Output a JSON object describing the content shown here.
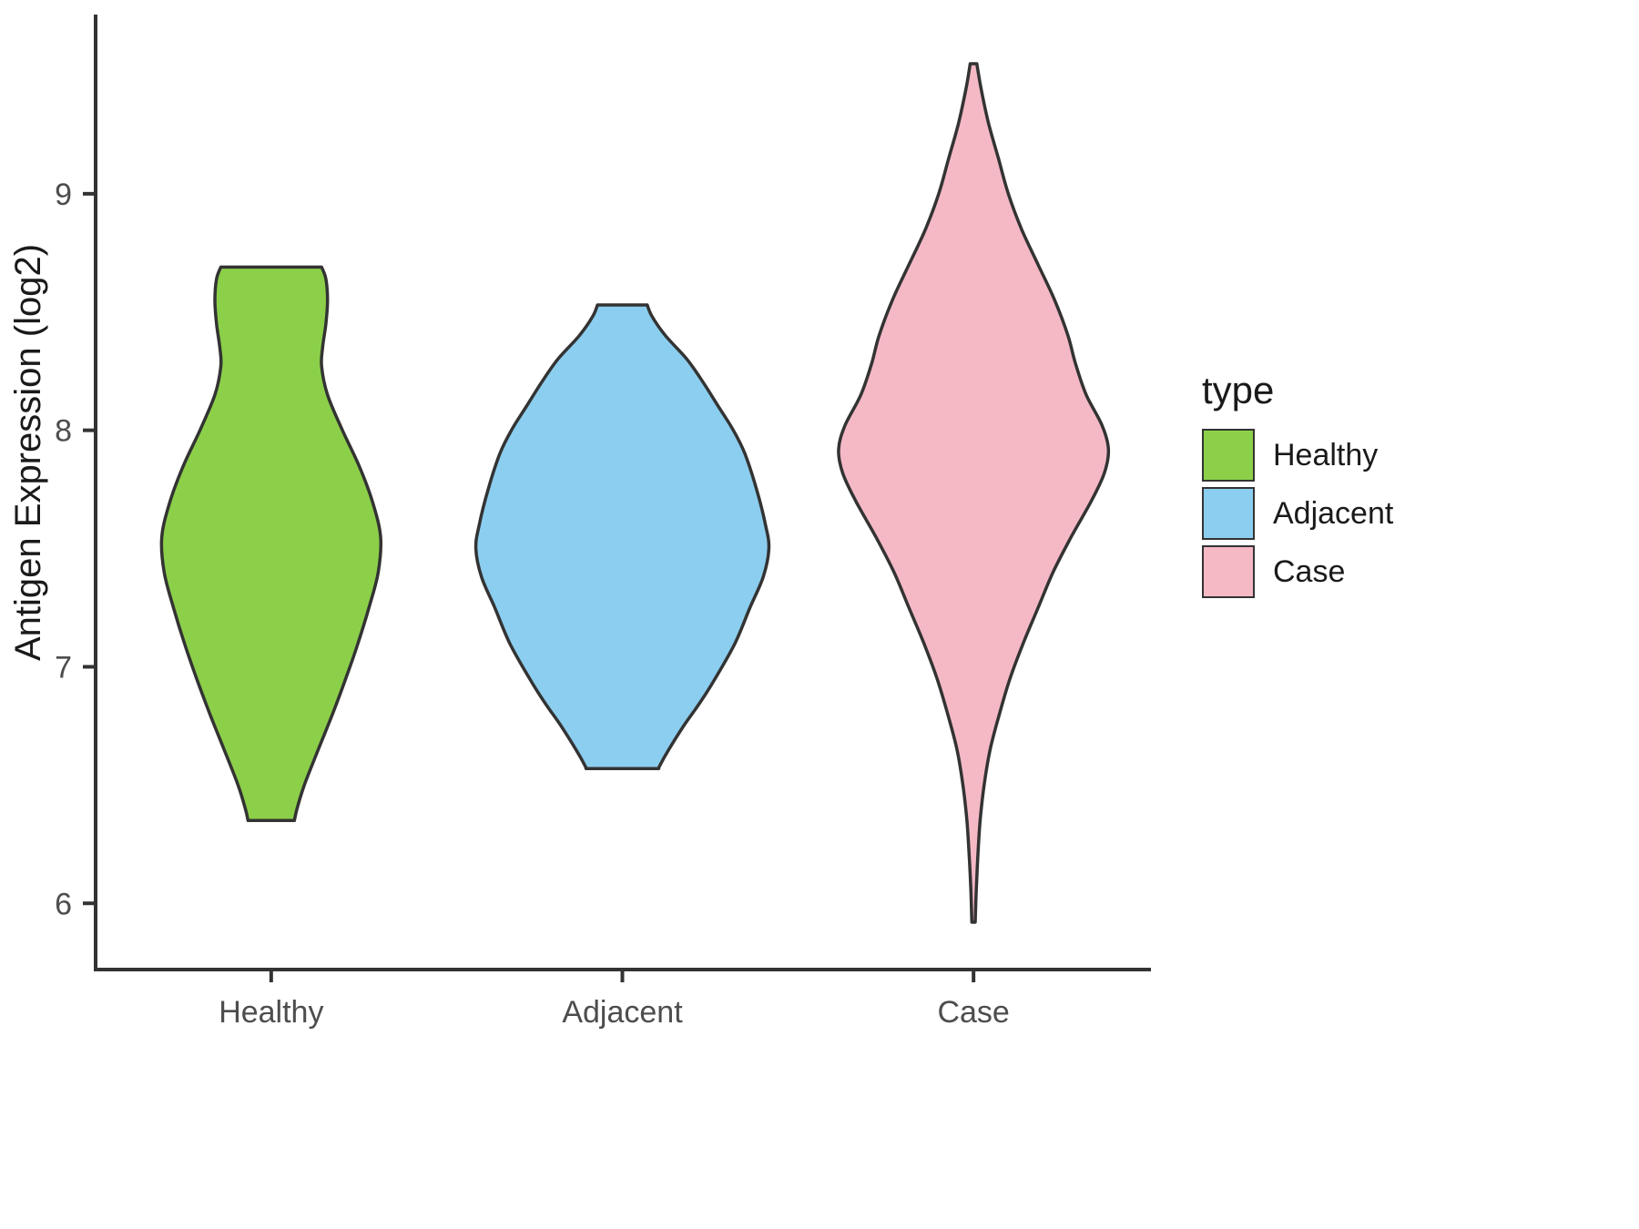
{
  "chart_data": {
    "type": "violin",
    "title": "",
    "xlabel": "",
    "ylabel": "Antigen Expression (log2)",
    "categories": [
      "Healthy",
      "Adjacent",
      "Case"
    ],
    "y_ticks": [
      6,
      7,
      8,
      9
    ],
    "ylim": [
      5.72,
      9.75
    ],
    "legend_title": "type",
    "legend_position": "right",
    "grid": "off",
    "outline_color": "#333333",
    "axis_color": "#333333",
    "text_color": "#4d4d4d",
    "series": [
      {
        "name": "Healthy",
        "color": "#8cd04a",
        "y_min": 6.35,
        "y_max": 8.69,
        "peak_at": 7.55,
        "profile": [
          [
            8.69,
            0.152
          ],
          [
            8.64,
            0.165
          ],
          [
            8.55,
            0.17
          ],
          [
            8.45,
            0.165
          ],
          [
            8.35,
            0.155
          ],
          [
            8.27,
            0.152
          ],
          [
            8.15,
            0.17
          ],
          [
            8.0,
            0.215
          ],
          [
            7.85,
            0.265
          ],
          [
            7.7,
            0.305
          ],
          [
            7.55,
            0.33
          ],
          [
            7.4,
            0.323
          ],
          [
            7.25,
            0.295
          ],
          [
            7.1,
            0.262
          ],
          [
            6.95,
            0.225
          ],
          [
            6.8,
            0.185
          ],
          [
            6.65,
            0.142
          ],
          [
            6.5,
            0.1
          ],
          [
            6.4,
            0.078
          ],
          [
            6.35,
            0.07
          ]
        ]
      },
      {
        "name": "Adjacent",
        "color": "#8cceef",
        "y_min": 6.57,
        "y_max": 8.53,
        "peak_at": 7.5,
        "profile": [
          [
            8.53,
            0.075
          ],
          [
            8.48,
            0.09
          ],
          [
            8.4,
            0.13
          ],
          [
            8.3,
            0.195
          ],
          [
            8.2,
            0.245
          ],
          [
            8.1,
            0.29
          ],
          [
            8.0,
            0.335
          ],
          [
            7.9,
            0.37
          ],
          [
            7.75,
            0.405
          ],
          [
            7.6,
            0.432
          ],
          [
            7.5,
            0.442
          ],
          [
            7.38,
            0.425
          ],
          [
            7.25,
            0.385
          ],
          [
            7.1,
            0.34
          ],
          [
            6.95,
            0.28
          ],
          [
            6.85,
            0.235
          ],
          [
            6.75,
            0.185
          ],
          [
            6.65,
            0.14
          ],
          [
            6.58,
            0.112
          ],
          [
            6.57,
            0.11
          ]
        ]
      },
      {
        "name": "Case",
        "color": "#f5b9c6",
        "y_min": 5.92,
        "y_max": 9.55,
        "peak_at": 7.92,
        "profile": [
          [
            9.55,
            0.01
          ],
          [
            9.45,
            0.022
          ],
          [
            9.3,
            0.045
          ],
          [
            9.15,
            0.075
          ],
          [
            9.0,
            0.105
          ],
          [
            8.85,
            0.145
          ],
          [
            8.7,
            0.195
          ],
          [
            8.55,
            0.245
          ],
          [
            8.4,
            0.285
          ],
          [
            8.28,
            0.308
          ],
          [
            8.15,
            0.34
          ],
          [
            8.02,
            0.388
          ],
          [
            7.92,
            0.407
          ],
          [
            7.82,
            0.395
          ],
          [
            7.7,
            0.355
          ],
          [
            7.55,
            0.295
          ],
          [
            7.4,
            0.24
          ],
          [
            7.25,
            0.195
          ],
          [
            7.1,
            0.15
          ],
          [
            6.95,
            0.11
          ],
          [
            6.8,
            0.078
          ],
          [
            6.65,
            0.05
          ],
          [
            6.5,
            0.032
          ],
          [
            6.35,
            0.02
          ],
          [
            6.2,
            0.013
          ],
          [
            6.05,
            0.008
          ],
          [
            5.92,
            0.005
          ]
        ]
      }
    ]
  }
}
